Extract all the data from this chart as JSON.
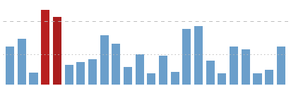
{
  "values": [
    48,
    58,
    15,
    95,
    86,
    25,
    28,
    32,
    62,
    52,
    22,
    38,
    14,
    36,
    16,
    70,
    74,
    30,
    14,
    48,
    44,
    14,
    18,
    48
  ],
  "colors": [
    "#6b9fcb",
    "#6b9fcb",
    "#6b9fcb",
    "#b82020",
    "#aa1e1e",
    "#6b9fcb",
    "#6b9fcb",
    "#6b9fcb",
    "#6b9fcb",
    "#6b9fcb",
    "#6b9fcb",
    "#6b9fcb",
    "#6b9fcb",
    "#6b9fcb",
    "#6b9fcb",
    "#6b9fcb",
    "#6b9fcb",
    "#6b9fcb",
    "#6b9fcb",
    "#6b9fcb",
    "#6b9fcb",
    "#6b9fcb",
    "#6b9fcb",
    "#6b9fcb"
  ],
  "threshold1": 80,
  "threshold2": 38,
  "threshold1_color": "#bbbbbb",
  "threshold2_color": "#bbbbbb",
  "bg_color": "#ffffff",
  "ylim_max": 105
}
